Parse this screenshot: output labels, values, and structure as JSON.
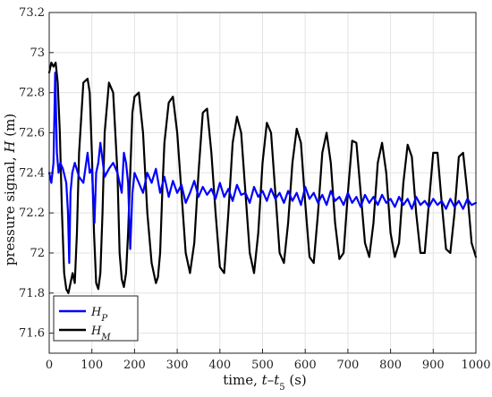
{
  "chart_data": {
    "type": "line",
    "xlabel_prefix": "time, ",
    "xlabel_var": "t",
    "xlabel_sep": "–",
    "xlabel_var2": "t",
    "xlabel_sub": "5",
    "xlabel_unit": " (s)",
    "ylabel_prefix": "pressure signal, ",
    "ylabel_var": "H",
    "ylabel_unit": " (m)",
    "xlim": [
      0,
      1000
    ],
    "ylim": [
      71.5,
      73.2
    ],
    "xticks": [
      0,
      100,
      200,
      300,
      400,
      500,
      600,
      700,
      800,
      900,
      1000
    ],
    "yticks": [
      71.6,
      71.8,
      72,
      72.2,
      72.4,
      72.6,
      72.8,
      73,
      73.2
    ],
    "ytick_labels": [
      "71.6",
      "71.8",
      "72",
      "72.2",
      "72.4",
      "72.6",
      "72.8",
      "73",
      "73.2"
    ],
    "grid": true,
    "legend_position": "bottom-left",
    "series": [
      {
        "name_main": "H",
        "name_sub": "P",
        "color": "#0000ff",
        "x": [
          0,
          5,
          10,
          14,
          18,
          22,
          26,
          32,
          40,
          44,
          47,
          50,
          54,
          60,
          70,
          80,
          90,
          95,
          100,
          106,
          110,
          115,
          120,
          130,
          140,
          150,
          160,
          170,
          175,
          180,
          185,
          190,
          195,
          200,
          210,
          220,
          230,
          240,
          250,
          260,
          270,
          280,
          290,
          300,
          310,
          320,
          330,
          340,
          350,
          360,
          370,
          380,
          390,
          400,
          410,
          420,
          430,
          440,
          450,
          460,
          470,
          480,
          490,
          500,
          510,
          520,
          530,
          540,
          550,
          560,
          570,
          580,
          590,
          600,
          610,
          620,
          630,
          640,
          650,
          660,
          670,
          680,
          690,
          700,
          710,
          720,
          730,
          740,
          750,
          760,
          770,
          780,
          790,
          800,
          810,
          820,
          830,
          840,
          850,
          860,
          870,
          880,
          890,
          900,
          910,
          920,
          930,
          940,
          950,
          960,
          970,
          980,
          990,
          1000
        ],
        "y": [
          72.4,
          72.35,
          72.45,
          72.9,
          72.5,
          72.4,
          72.45,
          72.42,
          72.35,
          72.2,
          71.95,
          72.3,
          72.4,
          72.45,
          72.38,
          72.35,
          72.5,
          72.4,
          72.42,
          72.15,
          72.4,
          72.45,
          72.55,
          72.38,
          72.42,
          72.45,
          72.4,
          72.3,
          72.5,
          72.45,
          72.35,
          72.02,
          72.3,
          72.4,
          72.35,
          72.3,
          72.4,
          72.35,
          72.42,
          72.3,
          72.38,
          72.28,
          72.36,
          72.3,
          72.34,
          72.25,
          72.3,
          72.36,
          72.28,
          72.33,
          72.29,
          72.32,
          72.27,
          72.35,
          72.28,
          72.32,
          72.26,
          72.34,
          72.29,
          72.3,
          72.25,
          72.33,
          72.28,
          72.31,
          72.26,
          72.32,
          72.27,
          72.3,
          72.25,
          72.31,
          72.26,
          72.3,
          72.24,
          72.33,
          72.27,
          72.3,
          72.25,
          72.29,
          72.24,
          72.31,
          72.26,
          72.28,
          72.24,
          72.3,
          72.25,
          72.28,
          72.23,
          72.29,
          72.25,
          72.28,
          72.24,
          72.29,
          72.25,
          72.27,
          72.23,
          72.28,
          72.24,
          72.27,
          72.22,
          72.28,
          72.24,
          72.26,
          72.23,
          72.27,
          72.24,
          72.26,
          72.22,
          72.27,
          72.23,
          72.26,
          72.22,
          72.27,
          72.24,
          72.25
        ]
      },
      {
        "name_main": "H",
        "name_sub": "M",
        "color": "#000000",
        "x": [
          0,
          5,
          10,
          15,
          20,
          25,
          30,
          35,
          40,
          45,
          50,
          55,
          60,
          65,
          70,
          80,
          90,
          95,
          100,
          105,
          110,
          115,
          120,
          125,
          130,
          140,
          150,
          160,
          165,
          170,
          175,
          180,
          185,
          190,
          195,
          200,
          210,
          220,
          230,
          240,
          250,
          255,
          260,
          265,
          270,
          280,
          290,
          300,
          310,
          320,
          330,
          340,
          350,
          360,
          370,
          380,
          390,
          400,
          410,
          420,
          430,
          440,
          450,
          460,
          470,
          480,
          490,
          500,
          510,
          520,
          530,
          540,
          550,
          560,
          570,
          580,
          590,
          600,
          610,
          620,
          630,
          640,
          650,
          660,
          670,
          680,
          690,
          700,
          710,
          720,
          730,
          740,
          750,
          760,
          770,
          780,
          790,
          800,
          810,
          820,
          830,
          840,
          850,
          860,
          870,
          880,
          890,
          900,
          910,
          920,
          930,
          940,
          950,
          960,
          970,
          980,
          990,
          1000
        ],
        "y": [
          72.9,
          72.95,
          72.93,
          72.95,
          72.85,
          72.6,
          72.2,
          71.9,
          71.82,
          71.8,
          71.85,
          71.9,
          71.85,
          72.1,
          72.5,
          72.85,
          72.87,
          72.8,
          72.5,
          72.1,
          71.85,
          71.82,
          71.9,
          72.2,
          72.6,
          72.85,
          72.8,
          72.4,
          72.0,
          71.87,
          71.83,
          71.9,
          72.1,
          72.4,
          72.7,
          72.78,
          72.8,
          72.6,
          72.2,
          71.95,
          71.85,
          71.88,
          72.0,
          72.3,
          72.55,
          72.75,
          72.78,
          72.6,
          72.3,
          72.0,
          71.9,
          72.05,
          72.4,
          72.7,
          72.72,
          72.5,
          72.2,
          71.93,
          71.9,
          72.2,
          72.55,
          72.68,
          72.6,
          72.3,
          72.0,
          71.9,
          72.1,
          72.45,
          72.65,
          72.6,
          72.3,
          72.0,
          71.95,
          72.15,
          72.45,
          72.62,
          72.55,
          72.25,
          71.98,
          71.95,
          72.2,
          72.5,
          72.6,
          72.45,
          72.15,
          71.97,
          72.0,
          72.3,
          72.56,
          72.55,
          72.3,
          72.05,
          71.98,
          72.15,
          72.45,
          72.55,
          72.4,
          72.1,
          71.98,
          72.05,
          72.35,
          72.54,
          72.48,
          72.2,
          72.0,
          72.0,
          72.25,
          72.5,
          72.5,
          72.25,
          72.02,
          72.0,
          72.2,
          72.48,
          72.5,
          72.3,
          72.05,
          71.98
        ]
      }
    ]
  }
}
